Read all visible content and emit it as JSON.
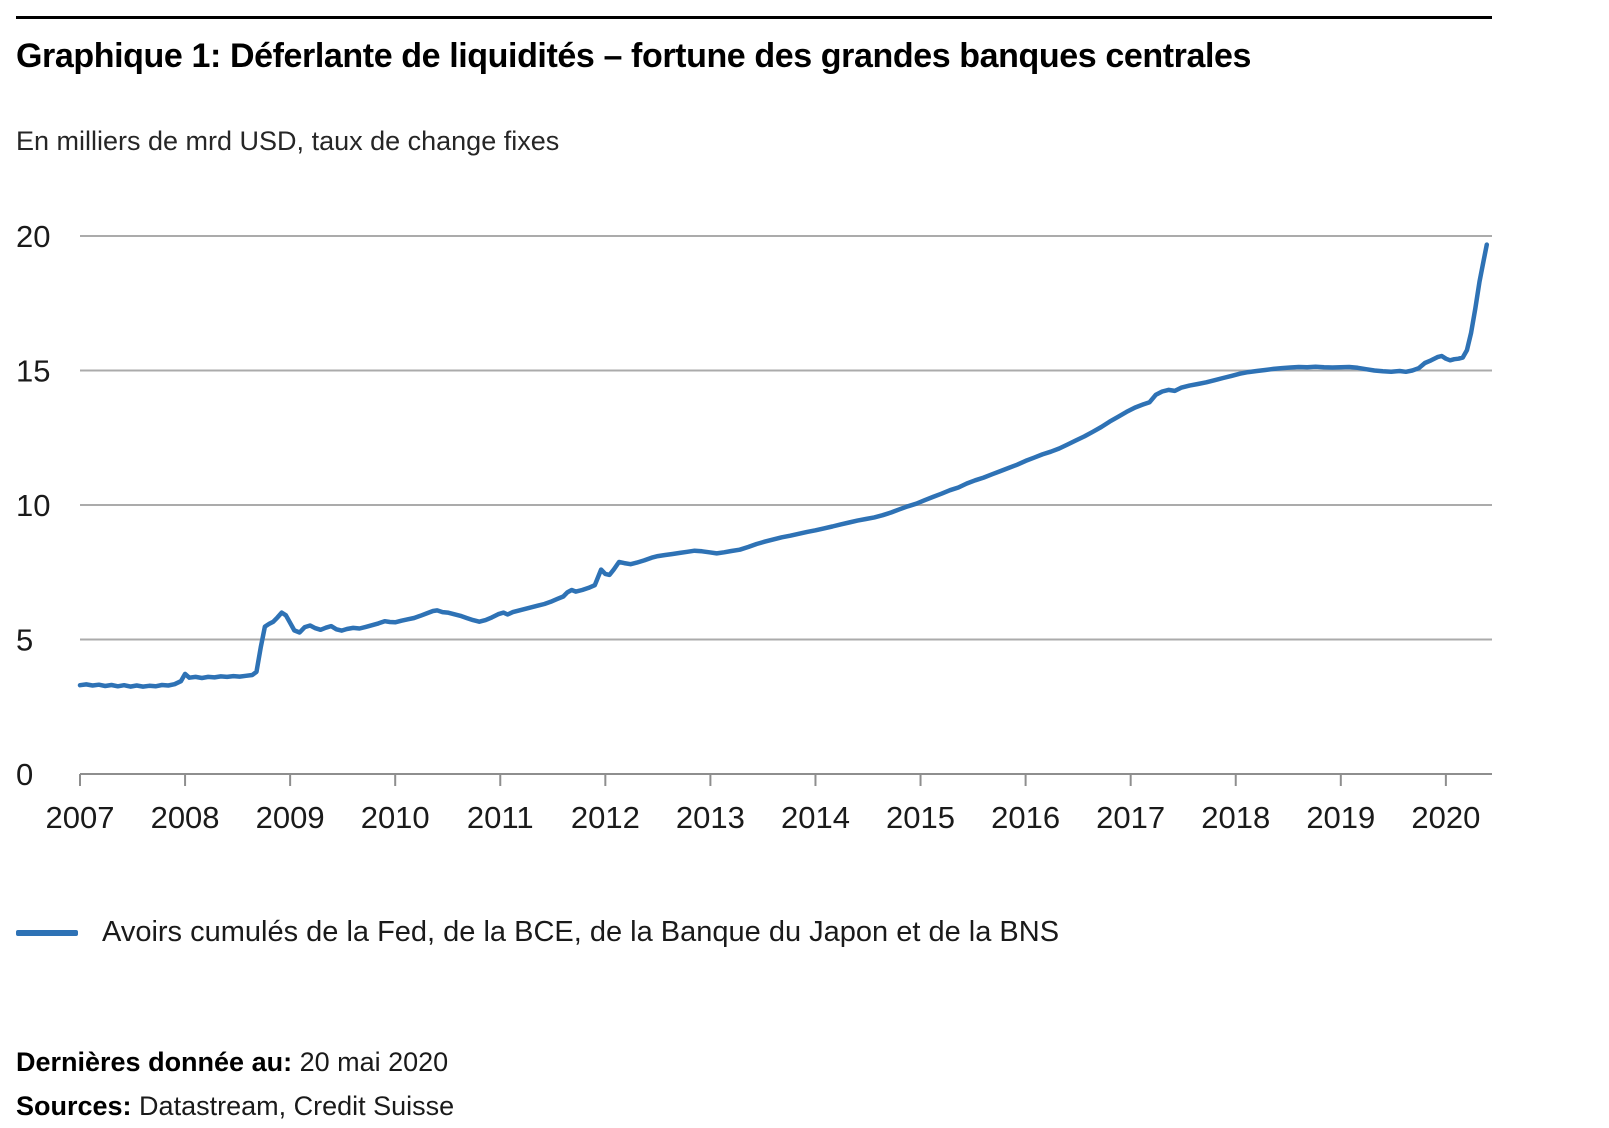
{
  "header": {
    "title": "Graphique 1: Déferlante de liquidités – fortune des grandes banques centrales",
    "subtitle": "En milliers de mrd USD, taux de change fixes"
  },
  "legend": {
    "label": "Avoirs cumulés de la Fed, de la BCE, de la Banque du Japon et de la BNS"
  },
  "footer": {
    "last_data_label": "Dernières donnée au:",
    "last_data_value": " 20 mai 2020",
    "sources_label": "Sources:",
    "sources_value": " Datastream, Credit Suisse"
  },
  "chart_data": {
    "type": "line",
    "title": "Graphique 1: Déferlante de liquidités – fortune des grandes banques centrales",
    "ylabel": "En milliers de mrd USD, taux de change fixes",
    "xlabel": "",
    "grid": true,
    "legend_position": "bottom",
    "ylim": [
      0,
      20
    ],
    "xlim": [
      2007,
      2020.42
    ],
    "y_ticks": [
      0,
      5,
      10,
      15,
      20
    ],
    "x_ticks": [
      2007,
      2008,
      2009,
      2010,
      2011,
      2012,
      2013,
      2014,
      2015,
      2016,
      2017,
      2018,
      2019,
      2020
    ],
    "line_color": "#2E72B5",
    "gridline_color": "#ABABAB",
    "axis_color": "#8E8E8E",
    "tick_label_color": "#1a1a1a",
    "series": [
      {
        "name": "Avoirs cumulés de la Fed, de la BCE, de la Banque du Japon et de la BNS",
        "color": "#2E72B5",
        "points": [
          [
            2007.0,
            3.3
          ],
          [
            2007.06,
            3.33
          ],
          [
            2007.12,
            3.29
          ],
          [
            2007.18,
            3.32
          ],
          [
            2007.24,
            3.27
          ],
          [
            2007.3,
            3.31
          ],
          [
            2007.36,
            3.26
          ],
          [
            2007.42,
            3.3
          ],
          [
            2007.48,
            3.25
          ],
          [
            2007.54,
            3.29
          ],
          [
            2007.6,
            3.25
          ],
          [
            2007.66,
            3.28
          ],
          [
            2007.72,
            3.26
          ],
          [
            2007.78,
            3.31
          ],
          [
            2007.84,
            3.29
          ],
          [
            2007.9,
            3.34
          ],
          [
            2007.96,
            3.45
          ],
          [
            2008.0,
            3.72
          ],
          [
            2008.04,
            3.58
          ],
          [
            2008.1,
            3.61
          ],
          [
            2008.16,
            3.57
          ],
          [
            2008.22,
            3.61
          ],
          [
            2008.28,
            3.59
          ],
          [
            2008.34,
            3.63
          ],
          [
            2008.4,
            3.61
          ],
          [
            2008.46,
            3.64
          ],
          [
            2008.52,
            3.62
          ],
          [
            2008.58,
            3.65
          ],
          [
            2008.64,
            3.68
          ],
          [
            2008.68,
            3.8
          ],
          [
            2008.72,
            4.7
          ],
          [
            2008.76,
            5.48
          ],
          [
            2008.8,
            5.58
          ],
          [
            2008.84,
            5.66
          ],
          [
            2008.88,
            5.82
          ],
          [
            2008.92,
            6.0
          ],
          [
            2008.96,
            5.9
          ],
          [
            2009.0,
            5.62
          ],
          [
            2009.04,
            5.34
          ],
          [
            2009.09,
            5.26
          ],
          [
            2009.14,
            5.46
          ],
          [
            2009.19,
            5.52
          ],
          [
            2009.24,
            5.42
          ],
          [
            2009.29,
            5.36
          ],
          [
            2009.34,
            5.44
          ],
          [
            2009.39,
            5.5
          ],
          [
            2009.44,
            5.38
          ],
          [
            2009.49,
            5.33
          ],
          [
            2009.54,
            5.39
          ],
          [
            2009.6,
            5.43
          ],
          [
            2009.66,
            5.41
          ],
          [
            2009.72,
            5.47
          ],
          [
            2009.78,
            5.53
          ],
          [
            2009.84,
            5.6
          ],
          [
            2009.9,
            5.68
          ],
          [
            2009.95,
            5.65
          ],
          [
            2010.0,
            5.64
          ],
          [
            2010.06,
            5.7
          ],
          [
            2010.12,
            5.75
          ],
          [
            2010.18,
            5.8
          ],
          [
            2010.24,
            5.88
          ],
          [
            2010.3,
            5.97
          ],
          [
            2010.36,
            6.06
          ],
          [
            2010.4,
            6.08
          ],
          [
            2010.45,
            6.02
          ],
          [
            2010.5,
            6.0
          ],
          [
            2010.56,
            5.94
          ],
          [
            2010.62,
            5.88
          ],
          [
            2010.68,
            5.8
          ],
          [
            2010.74,
            5.72
          ],
          [
            2010.8,
            5.66
          ],
          [
            2010.86,
            5.72
          ],
          [
            2010.92,
            5.82
          ],
          [
            2010.98,
            5.94
          ],
          [
            2011.03,
            6.0
          ],
          [
            2011.07,
            5.93
          ],
          [
            2011.12,
            6.02
          ],
          [
            2011.18,
            6.08
          ],
          [
            2011.24,
            6.14
          ],
          [
            2011.3,
            6.2
          ],
          [
            2011.36,
            6.26
          ],
          [
            2011.42,
            6.32
          ],
          [
            2011.48,
            6.4
          ],
          [
            2011.54,
            6.5
          ],
          [
            2011.6,
            6.6
          ],
          [
            2011.64,
            6.76
          ],
          [
            2011.68,
            6.84
          ],
          [
            2011.72,
            6.78
          ],
          [
            2011.78,
            6.84
          ],
          [
            2011.84,
            6.92
          ],
          [
            2011.9,
            7.02
          ],
          [
            2011.96,
            7.6
          ],
          [
            2012.0,
            7.44
          ],
          [
            2012.04,
            7.4
          ],
          [
            2012.08,
            7.6
          ],
          [
            2012.13,
            7.88
          ],
          [
            2012.18,
            7.84
          ],
          [
            2012.24,
            7.8
          ],
          [
            2012.3,
            7.86
          ],
          [
            2012.37,
            7.94
          ],
          [
            2012.44,
            8.04
          ],
          [
            2012.5,
            8.1
          ],
          [
            2012.57,
            8.14
          ],
          [
            2012.64,
            8.18
          ],
          [
            2012.71,
            8.22
          ],
          [
            2012.78,
            8.26
          ],
          [
            2012.85,
            8.3
          ],
          [
            2012.92,
            8.28
          ],
          [
            2012.99,
            8.24
          ],
          [
            2013.06,
            8.2
          ],
          [
            2013.13,
            8.24
          ],
          [
            2013.2,
            8.29
          ],
          [
            2013.28,
            8.34
          ],
          [
            2013.36,
            8.44
          ],
          [
            2013.44,
            8.55
          ],
          [
            2013.52,
            8.64
          ],
          [
            2013.6,
            8.72
          ],
          [
            2013.68,
            8.8
          ],
          [
            2013.76,
            8.86
          ],
          [
            2013.84,
            8.93
          ],
          [
            2013.92,
            9.0
          ],
          [
            2014.0,
            9.06
          ],
          [
            2014.08,
            9.13
          ],
          [
            2014.16,
            9.2
          ],
          [
            2014.24,
            9.28
          ],
          [
            2014.32,
            9.35
          ],
          [
            2014.4,
            9.42
          ],
          [
            2014.48,
            9.48
          ],
          [
            2014.56,
            9.54
          ],
          [
            2014.64,
            9.62
          ],
          [
            2014.72,
            9.72
          ],
          [
            2014.8,
            9.84
          ],
          [
            2014.88,
            9.95
          ],
          [
            2014.96,
            10.05
          ],
          [
            2015.04,
            10.18
          ],
          [
            2015.12,
            10.3
          ],
          [
            2015.2,
            10.42
          ],
          [
            2015.28,
            10.55
          ],
          [
            2015.36,
            10.65
          ],
          [
            2015.44,
            10.8
          ],
          [
            2015.52,
            10.92
          ],
          [
            2015.6,
            11.02
          ],
          [
            2015.68,
            11.14
          ],
          [
            2015.76,
            11.26
          ],
          [
            2015.84,
            11.38
          ],
          [
            2015.92,
            11.5
          ],
          [
            2016.0,
            11.64
          ],
          [
            2016.08,
            11.76
          ],
          [
            2016.16,
            11.88
          ],
          [
            2016.24,
            11.98
          ],
          [
            2016.32,
            12.1
          ],
          [
            2016.4,
            12.25
          ],
          [
            2016.48,
            12.4
          ],
          [
            2016.56,
            12.55
          ],
          [
            2016.64,
            12.72
          ],
          [
            2016.72,
            12.9
          ],
          [
            2016.8,
            13.1
          ],
          [
            2016.88,
            13.28
          ],
          [
            2016.96,
            13.46
          ],
          [
            2017.04,
            13.62
          ],
          [
            2017.12,
            13.74
          ],
          [
            2017.18,
            13.82
          ],
          [
            2017.24,
            14.1
          ],
          [
            2017.3,
            14.22
          ],
          [
            2017.36,
            14.28
          ],
          [
            2017.42,
            14.24
          ],
          [
            2017.48,
            14.36
          ],
          [
            2017.56,
            14.44
          ],
          [
            2017.64,
            14.5
          ],
          [
            2017.72,
            14.56
          ],
          [
            2017.8,
            14.64
          ],
          [
            2017.88,
            14.72
          ],
          [
            2017.96,
            14.8
          ],
          [
            2018.04,
            14.88
          ],
          [
            2018.12,
            14.94
          ],
          [
            2018.2,
            14.98
          ],
          [
            2018.28,
            15.02
          ],
          [
            2018.36,
            15.06
          ],
          [
            2018.44,
            15.09
          ],
          [
            2018.52,
            15.11
          ],
          [
            2018.6,
            15.13
          ],
          [
            2018.68,
            15.12
          ],
          [
            2018.76,
            15.14
          ],
          [
            2018.84,
            15.12
          ],
          [
            2018.92,
            15.11
          ],
          [
            2019.0,
            15.12
          ],
          [
            2019.08,
            15.13
          ],
          [
            2019.16,
            15.1
          ],
          [
            2019.24,
            15.05
          ],
          [
            2019.32,
            15.0
          ],
          [
            2019.4,
            14.97
          ],
          [
            2019.48,
            14.95
          ],
          [
            2019.56,
            14.98
          ],
          [
            2019.62,
            14.95
          ],
          [
            2019.68,
            15.0
          ],
          [
            2019.74,
            15.08
          ],
          [
            2019.8,
            15.28
          ],
          [
            2019.86,
            15.38
          ],
          [
            2019.92,
            15.5
          ],
          [
            2019.96,
            15.54
          ],
          [
            2020.0,
            15.44
          ],
          [
            2020.04,
            15.38
          ],
          [
            2020.08,
            15.42
          ],
          [
            2020.12,
            15.44
          ],
          [
            2020.16,
            15.48
          ],
          [
            2020.2,
            15.75
          ],
          [
            2020.24,
            16.4
          ],
          [
            2020.28,
            17.3
          ],
          [
            2020.32,
            18.3
          ],
          [
            2020.36,
            19.1
          ],
          [
            2020.39,
            19.68
          ]
        ]
      }
    ]
  }
}
